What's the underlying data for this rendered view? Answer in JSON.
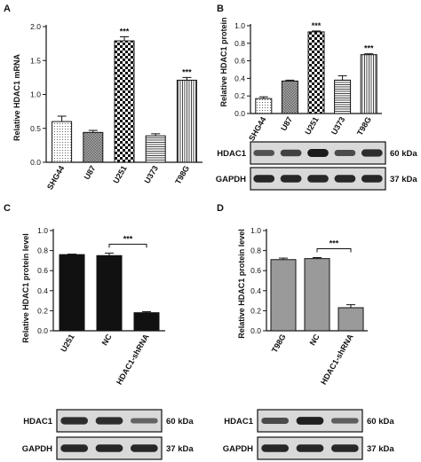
{
  "colors": {
    "axis": "#111111",
    "bar_dark": "#111111",
    "bar_gray": "#9a9a9a",
    "blot_bg": "#d9d9d9",
    "band": "#1a1a1a"
  },
  "panels": [
    {
      "letter": "A",
      "chart_data": {
        "type": "bar",
        "ylabel": "Relative HDAC1 mRNA",
        "ylim": [
          0,
          2.0
        ],
        "yticks": [
          "0.0",
          "0.5",
          "1.0",
          "1.5",
          "2.0"
        ],
        "categories": [
          "SHG44",
          "U87",
          "U251",
          "U373",
          "T98G"
        ],
        "values": [
          0.6,
          0.44,
          1.79,
          0.39,
          1.21
        ],
        "errors": [
          0.08,
          0.03,
          0.06,
          0.03,
          0.04
        ],
        "patterns": [
          "dots",
          "grid",
          "checker",
          "hlines",
          "vlines"
        ],
        "significance": [
          "",
          "",
          "***",
          "",
          "***"
        ]
      }
    },
    {
      "letter": "B",
      "chart_data": {
        "type": "bar",
        "ylabel": "Relative HDAC1 protein",
        "ylim": [
          0,
          1.0
        ],
        "yticks": [
          "0.0",
          "0.2",
          "0.4",
          "0.6",
          "0.8",
          "1.0"
        ],
        "categories": [
          "SHG44",
          "U87",
          "U251",
          "U373",
          "T98G"
        ],
        "values": [
          0.17,
          0.37,
          0.93,
          0.38,
          0.67
        ],
        "errors": [
          0.02,
          0.01,
          0.01,
          0.05,
          0.01
        ],
        "patterns": [
          "dots",
          "grid",
          "checker",
          "hlines",
          "vlines"
        ],
        "significance": [
          "",
          "",
          "***",
          "",
          "***"
        ]
      },
      "blot": {
        "rows": [
          {
            "label": "HDAC1",
            "kda": "60 kDa"
          },
          {
            "label": "GAPDH",
            "kda": "37 kDa"
          }
        ]
      }
    },
    {
      "letter": "C",
      "chart_data": {
        "type": "bar",
        "ylabel": "Relative HDAC1 protein level",
        "ylim": [
          0,
          1.0
        ],
        "yticks": [
          "0.0",
          "0.2",
          "0.4",
          "0.6",
          "0.8",
          "1.0"
        ],
        "categories": [
          "U251",
          "NC",
          "HDAC1-shRNA"
        ],
        "values": [
          0.76,
          0.75,
          0.18
        ],
        "errors": [
          0.005,
          0.025,
          0.01
        ],
        "bracket": {
          "from": 1,
          "to": 2,
          "label": "***"
        }
      },
      "blot": {
        "rows": [
          {
            "label": "HDAC1",
            "kda": "60 kDa"
          },
          {
            "label": "GAPDH",
            "kda": "37 kDa"
          }
        ]
      }
    },
    {
      "letter": "D",
      "chart_data": {
        "type": "bar",
        "ylabel": "Relative HDAC1 protein level",
        "ylim": [
          0,
          1.0
        ],
        "yticks": [
          "0.0",
          "0.2",
          "0.4",
          "0.6",
          "0.8",
          "1.0"
        ],
        "categories": [
          "T98G",
          "NC",
          "HDAC1-shRNA"
        ],
        "values": [
          0.71,
          0.72,
          0.23
        ],
        "errors": [
          0.015,
          0.01,
          0.03
        ],
        "bracket": {
          "from": 1,
          "to": 2,
          "label": "***"
        }
      },
      "blot": {
        "rows": [
          {
            "label": "HDAC1",
            "kda": "60 kDa"
          },
          {
            "label": "GAPDH",
            "kda": "37 kDa"
          }
        ]
      }
    }
  ]
}
